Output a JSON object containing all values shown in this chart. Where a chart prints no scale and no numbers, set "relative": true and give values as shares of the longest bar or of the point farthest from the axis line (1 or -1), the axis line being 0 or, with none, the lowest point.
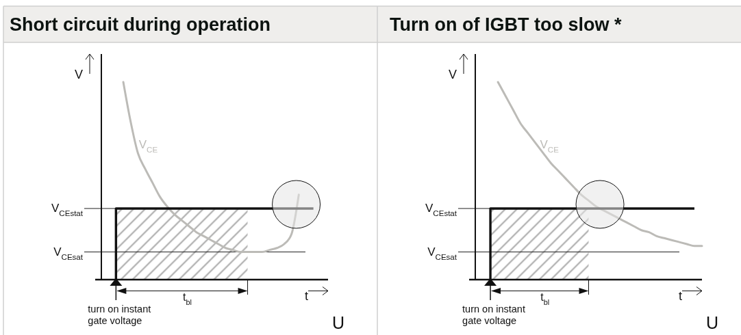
{
  "chart_data": [
    {
      "type": "line",
      "title": "Short circuit during operation",
      "xlabel": "t",
      "ylabel": "V",
      "relative": true,
      "categories": [
        null,
        null,
        null,
        null,
        null,
        null,
        null,
        null,
        null,
        null,
        null,
        null,
        null,
        null,
        null,
        null,
        null,
        null,
        null,
        null,
        null,
        null,
        null,
        null,
        null,
        null,
        null,
        null,
        null,
        null,
        null,
        null
      ],
      "series": [
        {
          "name": "V$_{CE}$",
          "type": "line",
          "color": "#bcbbb7",
          "values": [
            null,
            null,
            null,
            1.0,
            0.8,
            0.64,
            0.56,
            0.49,
            0.42,
            0.37,
            0.33,
            0.3,
            0.27,
            0.24,
            0.22,
            0.2,
            0.18,
            0.16,
            0.15,
            0.14,
            0.14,
            0.14,
            0.14,
            0.15,
            0.16,
            0.18,
            0.23,
            0.43,
            null,
            null,
            null,
            null
          ]
        },
        {
          "type": "step",
          "color": "#111111",
          "values": [
            null,
            null,
            0,
            0.36,
            0.36,
            0.36,
            0.36,
            0.36,
            0.36,
            0.36,
            0.36,
            0.36,
            0.36,
            0.36,
            0.36,
            0.36,
            0.36,
            0.36,
            0.36,
            0.36,
            0.36,
            0.36,
            0.36,
            0.36,
            0.36,
            0.36,
            0.36,
            0.36,
            0.36,
            0.36,
            null,
            null
          ]
        },
        {
          "type": "area",
          "color": "#b5b5b5",
          "values": [
            null,
            null,
            0.36,
            0.36,
            0.36,
            0.36,
            0.36,
            0.36,
            0.36,
            0.36,
            0.36,
            0.36,
            0.36,
            0.36,
            0.36,
            0.36,
            0.36,
            0.36,
            0.36,
            0.36,
            0.36,
            null,
            null,
            null,
            null,
            null,
            null,
            null,
            null,
            null,
            null,
            null
          ]
        }
      ],
      "ref_lines": [
        {
          "axis": "y",
          "value": 0.36,
          "label": "V$_{CEstat}$"
        },
        {
          "axis": "y",
          "value": 0.14,
          "label": "V$_{CEsat}$"
        }
      ],
      "annotations": [
        "t$_{bl}$",
        "turn on instant gate voltage",
        "U"
      ]
    },
    {
      "type": "line",
      "title": "Turn on of IGBT too slow *",
      "xlabel": "t",
      "ylabel": "V",
      "relative": true,
      "categories": [
        null,
        null,
        null,
        null,
        null,
        null,
        null,
        null,
        null,
        null,
        null,
        null,
        null,
        null,
        null,
        null,
        null,
        null,
        null,
        null,
        null,
        null,
        null,
        null,
        null,
        null,
        null,
        null,
        null,
        null,
        null
      ],
      "series": [
        {
          "name": "V$_{CE}$",
          "type": "line",
          "color": "#bcbbb7",
          "values": [
            null,
            null,
            null,
            1.0,
            0.93,
            0.86,
            0.79,
            0.74,
            0.69,
            0.64,
            0.59,
            0.55,
            0.51,
            0.47,
            0.43,
            0.4,
            0.37,
            0.35,
            0.33,
            0.31,
            0.29,
            0.27,
            0.25,
            0.24,
            0.22,
            0.21,
            0.2,
            0.19,
            0.18,
            0.17,
            0.17
          ]
        },
        {
          "type": "step",
          "color": "#111111",
          "values": [
            null,
            null,
            0,
            0.36,
            0.36,
            0.36,
            0.36,
            0.36,
            0.36,
            0.36,
            0.36,
            0.36,
            0.36,
            0.36,
            0.36,
            0.36,
            0.36,
            0.36,
            0.36,
            0.36,
            0.36,
            0.36,
            0.36,
            0.36,
            0.36,
            0.36,
            0.36,
            0.36,
            0.36,
            0.36,
            null
          ]
        },
        {
          "type": "area",
          "color": "#b5b5b5",
          "values": [
            null,
            null,
            0.36,
            0.36,
            0.36,
            0.36,
            0.36,
            0.36,
            0.36,
            0.36,
            0.36,
            0.36,
            0.36,
            0.36,
            0.36,
            0.36,
            null,
            null,
            null,
            null,
            null,
            null,
            null,
            null,
            null,
            null,
            null,
            null,
            null,
            null,
            null
          ]
        }
      ],
      "ref_lines": [
        {
          "axis": "y",
          "value": 0.36,
          "label": "V$_{CEstat}$"
        },
        {
          "axis": "y",
          "value": 0.14,
          "label": "V$_{CEsat}$"
        }
      ],
      "annotations": [
        "t$_{bl}$",
        "turn on instant gate voltage",
        "U"
      ]
    }
  ]
}
